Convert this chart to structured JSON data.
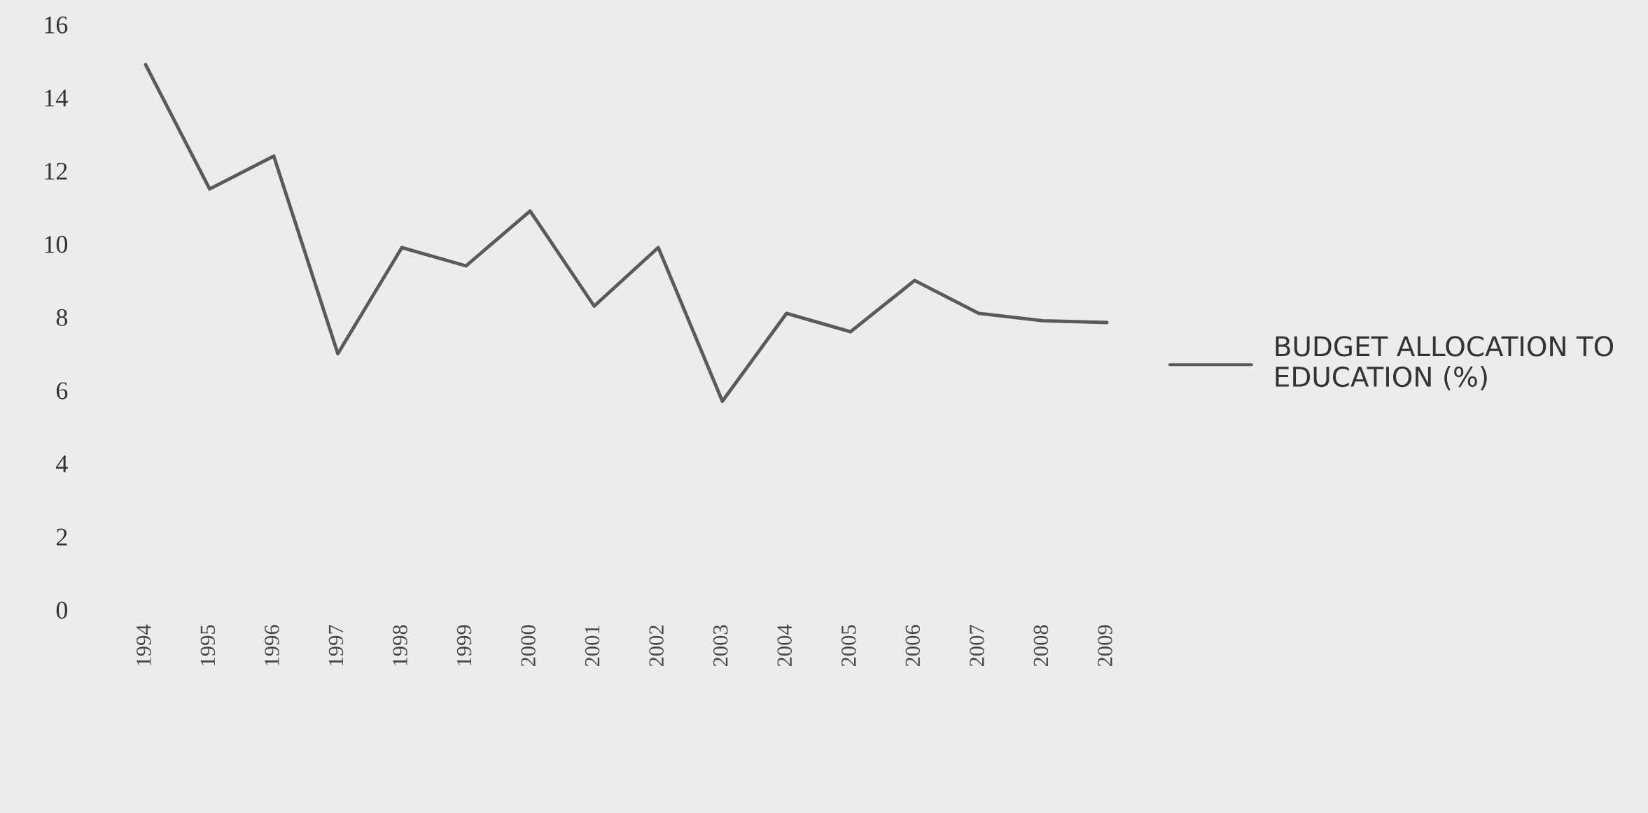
{
  "chart_data": {
    "type": "line",
    "categories": [
      "1994",
      "1995",
      "1996",
      "1997",
      "1998",
      "1999",
      "2000",
      "2001",
      "2002",
      "2003",
      "2004",
      "2005",
      "2006",
      "2007",
      "2008",
      "2009"
    ],
    "series": [
      {
        "name": "BUDGET ALLOCATION TO EDUCATION (%)",
        "color": "#5a5a5a",
        "values": [
          14.9,
          11.5,
          12.4,
          7.0,
          9.9,
          9.4,
          10.9,
          8.3,
          9.9,
          5.7,
          8.1,
          7.6,
          9.0,
          8.1,
          7.9,
          7.85
        ]
      }
    ],
    "ylim": [
      0,
      16
    ],
    "yticks": [
      0,
      2,
      4,
      6,
      8,
      10,
      12,
      14,
      16
    ],
    "grid": false,
    "legend": "right",
    "marker": "none",
    "line_style": "solid"
  }
}
